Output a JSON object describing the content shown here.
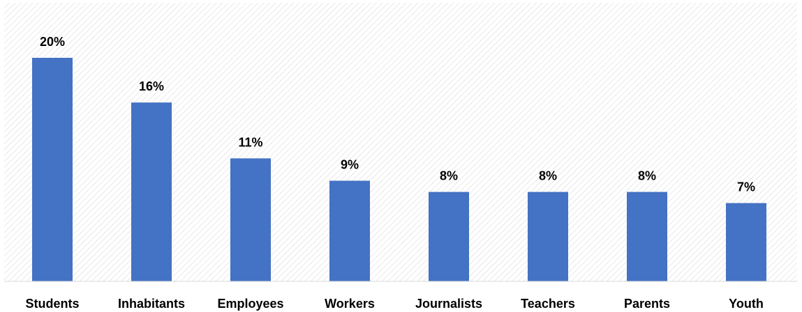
{
  "chart_data": {
    "type": "bar",
    "categories": [
      "Students",
      "Inhabitants",
      "Employees",
      "Workers",
      "Journalists",
      "Teachers",
      "Parents",
      "Youth"
    ],
    "values": [
      20,
      16,
      11,
      9,
      8,
      8,
      8,
      7
    ],
    "data_labels": [
      "20%",
      "16%",
      "11%",
      "9%",
      "8%",
      "8%",
      "8%",
      "7%"
    ],
    "title": "",
    "xlabel": "",
    "ylabel": "",
    "ylim": [
      0,
      25
    ],
    "grid": false,
    "legend": "none",
    "colors": {
      "bar": "#4472C4",
      "background_hatch": "#d9d9d9",
      "axis": "#d9d9d9",
      "text": "#000000"
    }
  }
}
